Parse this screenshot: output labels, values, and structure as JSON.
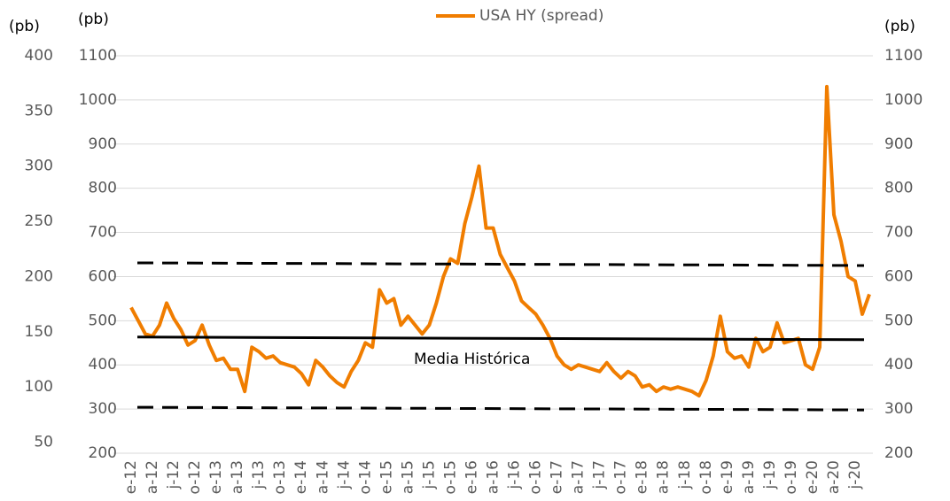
{
  "chart_data": {
    "type": "line",
    "legend_title": "USA HY (spread)",
    "y3label": "(pb)",
    "ylabel": "(pb)",
    "y2label": "(pb)",
    "annotation": "Media Histórica",
    "ylim": [
      200,
      1100
    ],
    "yticks": [
      200,
      300,
      400,
      500,
      600,
      700,
      800,
      900,
      1000,
      1100
    ],
    "y2lim": [
      200,
      1100
    ],
    "y2ticks": [
      200,
      300,
      400,
      500,
      600,
      700,
      800,
      900,
      1000,
      1100
    ],
    "y3lim": [
      40,
      400
    ],
    "y3ticks": [
      50,
      100,
      150,
      200,
      250,
      300,
      350,
      400
    ],
    "grid": true,
    "categories": [
      "e-12",
      null,
      null,
      "a-12",
      null,
      null,
      "j-12",
      null,
      null,
      "o-12",
      null,
      null,
      "e-13",
      null,
      null,
      "a-13",
      null,
      null,
      "j-13",
      null,
      null,
      "o-13",
      null,
      null,
      "e-14",
      null,
      null,
      "a-14",
      null,
      null,
      "j-14",
      null,
      null,
      "o-14",
      null,
      null,
      "e-15",
      null,
      null,
      "a-15",
      null,
      null,
      "j-15",
      null,
      null,
      "o-15",
      null,
      null,
      "e-16",
      null,
      null,
      "a-16",
      null,
      null,
      "j-16",
      null,
      null,
      "o-16",
      null,
      null,
      "e-17",
      null,
      null,
      "a-17",
      null,
      null,
      "j-17",
      null,
      null,
      "o-17",
      null,
      null,
      "e-18",
      null,
      null,
      "a-18",
      null,
      null,
      "j-18",
      null,
      null,
      "o-18",
      null,
      null,
      "e-19",
      null,
      null,
      "a-19",
      null,
      null,
      "j-19",
      null,
      null,
      "o-19",
      null,
      null,
      "e-20",
      null,
      null,
      "a-20",
      null,
      null,
      "j-20",
      null,
      null
    ],
    "series": [
      {
        "name": "USA HY (spread)",
        "color": "#f07d00",
        "values": [
          530,
          500,
          470,
          465,
          490,
          540,
          505,
          480,
          445,
          455,
          490,
          445,
          410,
          415,
          390,
          390,
          340,
          440,
          430,
          415,
          420,
          405,
          400,
          395,
          380,
          355,
          410,
          395,
          375,
          360,
          350,
          385,
          410,
          450,
          440,
          570,
          540,
          550,
          490,
          510,
          490,
          470,
          490,
          540,
          600,
          640,
          630,
          720,
          780,
          850,
          710,
          710,
          650,
          620,
          590,
          545,
          530,
          515,
          490,
          460,
          420,
          400,
          390,
          400,
          395,
          390,
          385,
          405,
          385,
          370,
          385,
          375,
          350,
          355,
          340,
          350,
          345,
          350,
          345,
          340,
          330,
          365,
          420,
          510,
          430,
          415,
          420,
          395,
          460,
          430,
          440,
          495,
          450,
          455,
          460,
          400,
          390,
          440,
          1030,
          740,
          680,
          600,
          590,
          515,
          560
        ]
      }
    ],
    "mean_line": [
      463,
      457
    ],
    "upper_band": [
      631,
      625
    ],
    "lower_band": [
      304,
      298
    ]
  }
}
